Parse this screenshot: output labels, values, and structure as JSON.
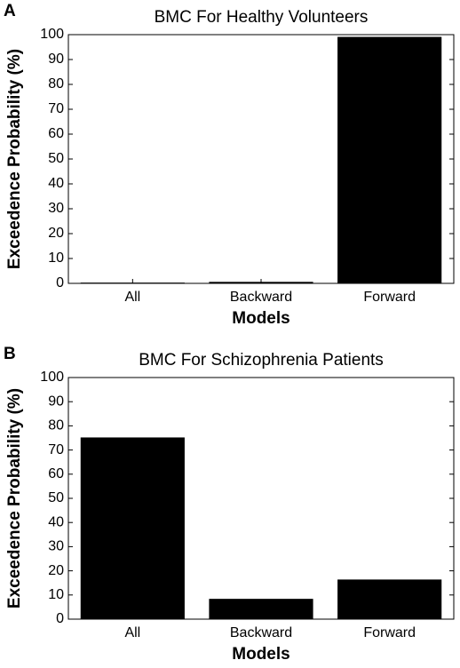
{
  "chart_data": [
    {
      "type": "bar",
      "panel": "A",
      "title": "BMC For Healthy Volunteers",
      "x_label": "Models",
      "y_label": "Exceedence Probability (%)",
      "categories": [
        "All",
        "Backward",
        "Forward"
      ],
      "values": [
        0.3,
        0.6,
        99.1
      ],
      "color": "#000000",
      "ylim": [
        0,
        100
      ],
      "yticks": [
        0,
        10,
        20,
        30,
        40,
        50,
        60,
        70,
        80,
        90,
        100
      ]
    },
    {
      "type": "bar",
      "panel": "B",
      "title": "BMC For Schizophrenia Patients",
      "x_label": "Models",
      "y_label": "Exceedence Probability (%)",
      "categories": [
        "All",
        "Backward",
        "Forward"
      ],
      "values": [
        75.2,
        8.4,
        16.4
      ],
      "color": "#000000",
      "ylim": [
        0,
        100
      ],
      "yticks": [
        0,
        10,
        20,
        30,
        40,
        50,
        60,
        70,
        80,
        90,
        100
      ]
    }
  ]
}
